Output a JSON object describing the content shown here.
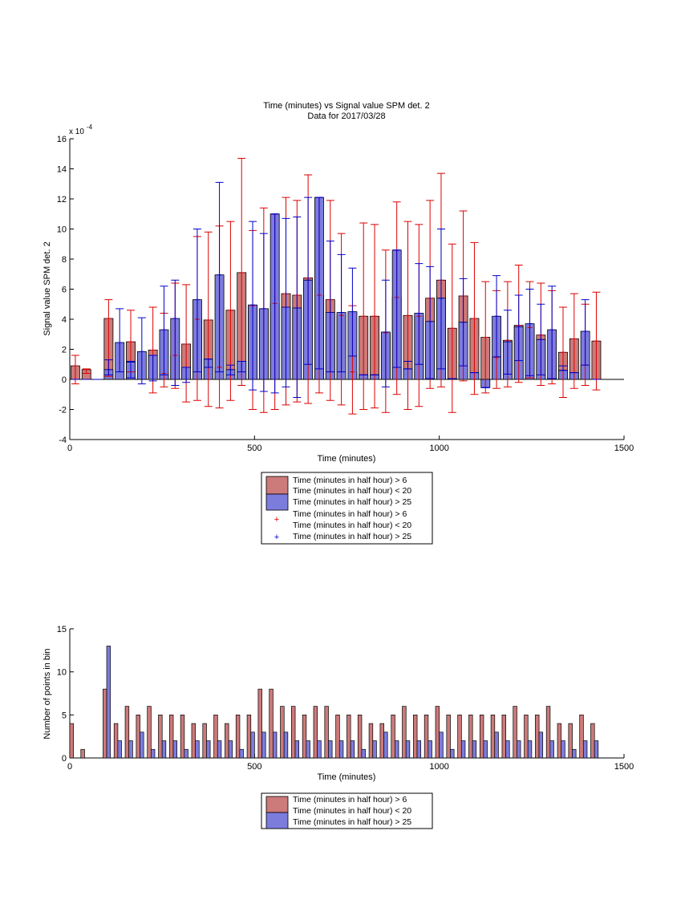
{
  "chart_data": [
    {
      "type": "bar",
      "title": "Time (minutes) vs Signal value SPM det. 2",
      "subtitle": "Data for 2017/03/28",
      "xlabel": "Time (minutes)",
      "ylabel": "Signal value SPM det. 2",
      "y_multiplier_label": "x 10",
      "y_multiplier_exponent": "-4",
      "xlim": [
        0,
        1500
      ],
      "ylim": [
        -4,
        16
      ],
      "xticks": [
        "0",
        "500",
        "1000",
        "1500"
      ],
      "yticks": [
        "-4",
        "-2",
        "0",
        "2",
        "4",
        "6",
        "8",
        "10",
        "12",
        "14",
        "16"
      ],
      "grid": false,
      "legend_position": "below",
      "legend": [
        "Time (minutes in half hour) > 6",
        "Time (minutes in half hour) < 20",
        "Time (minutes in half hour) > 25",
        "Time (minutes in half hour) > 6",
        "Time (minutes in half hour) < 20",
        "Time (minutes in half hour) > 25"
      ],
      "colors": {
        "red_bar": "#cc7a7a",
        "blue_bar": "#7c7cdd",
        "red_err": "#dd0000",
        "blue_err": "#0000cc"
      },
      "series": [
        {
          "name": "Time (minutes in half hour) > 6 / < 20",
          "x": [
            15,
            45,
            105,
            165,
            225,
            255,
            285,
            315,
            345,
            375,
            405,
            435,
            465,
            495,
            525,
            555,
            585,
            615,
            645,
            675,
            705,
            735,
            765,
            795,
            825,
            855,
            885,
            915,
            945,
            975,
            1005,
            1035,
            1065,
            1095,
            1125,
            1155,
            1185,
            1215,
            1245,
            1275,
            1305,
            1335,
            1365,
            1395,
            1425
          ],
          "values": [
            0.9,
            0.65,
            4.05,
            2.5,
            1.95,
            0.4,
            1.6,
            2.35,
            4.0,
            3.95,
            0.8,
            4.6,
            7.1,
            4.9,
            4.7,
            5.05,
            5.7,
            5.6,
            6.75,
            5.6,
            5.3,
            4.25,
            0.5,
            4.2,
            4.2,
            3.1,
            5.45,
            4.25,
            4.2,
            5.4,
            6.6,
            3.4,
            5.55,
            4.05,
            2.8,
            1.45,
            2.6,
            3.6,
            3.45,
            2.95,
            0.05,
            1.8,
            2.7,
            0.95,
            2.55
          ],
          "err_low": [
            -0.3,
            0.4,
            0.2,
            0.5,
            -0.9,
            -0.5,
            -0.6,
            -1.5,
            -1.4,
            -1.8,
            -1.9,
            -1.4,
            -0.4,
            -2.0,
            -2.2,
            -2.0,
            -1.7,
            -1.5,
            -1.6,
            -0.9,
            -1.4,
            -1.7,
            -2.3,
            -2.0,
            -1.9,
            -2.2,
            -1.0,
            -2.0,
            -1.8,
            -0.6,
            -0.5,
            -2.2,
            -0.1,
            -1.0,
            -0.9,
            -0.6,
            -0.5,
            -0.2,
            0.1,
            -0.4,
            -0.3,
            -1.2,
            -0.6,
            -0.4,
            -0.7
          ],
          "err_high": [
            1.6,
            0.7,
            5.3,
            4.6,
            4.8,
            4.4,
            6.4,
            6.3,
            9.5,
            9.8,
            10.2,
            10.5,
            14.7,
            9.9,
            11.4,
            11.0,
            12.1,
            11.9,
            13.6,
            12.1,
            11.9,
            9.7,
            4.9,
            10.4,
            10.3,
            8.6,
            11.8,
            10.5,
            10.3,
            11.9,
            13.7,
            9.0,
            11.2,
            9.1,
            6.5,
            5.9,
            6.5,
            7.6,
            6.5,
            6.4,
            5.9,
            4.8,
            5.7,
            5.0,
            5.8
          ]
        },
        {
          "name": "Time (minutes in half hour) > 25",
          "x": [
            15,
            45,
            75,
            105,
            135,
            165,
            195,
            225,
            255,
            285,
            315,
            345,
            375,
            405,
            435,
            465,
            495,
            525,
            555,
            585,
            615,
            645,
            675,
            705,
            735,
            765,
            795,
            825,
            855,
            885,
            915,
            945,
            975,
            1005,
            1035,
            1065,
            1095,
            1125,
            1155,
            1185,
            1215,
            1245,
            1275,
            1305,
            1335,
            1365,
            1395,
            1425
          ],
          "values": [
            0.0,
            0.0,
            0.0,
            0.65,
            2.45,
            1.15,
            1.85,
            1.6,
            3.3,
            4.05,
            0.8,
            5.3,
            1.35,
            6.95,
            0.65,
            1.2,
            4.95,
            4.7,
            11.0,
            4.8,
            4.75,
            6.6,
            12.1,
            4.45,
            4.45,
            4.5,
            0.3,
            0.3,
            3.15,
            8.6,
            0.7,
            4.4,
            3.85,
            5.4,
            0.05,
            3.8,
            0.45,
            -0.55,
            4.2,
            2.5,
            3.5,
            3.7,
            2.65,
            3.3,
            0.6,
            0.45,
            3.2,
            0.0
          ],
          "err_low": [
            0.0,
            0.0,
            0.0,
            0.3,
            0.5,
            0.1,
            -0.3,
            -0.1,
            0.3,
            -0.4,
            -0.2,
            0.5,
            0.8,
            0.5,
            0.3,
            0.5,
            -0.7,
            -0.8,
            -0.9,
            -0.5,
            -1.2,
            1.0,
            0.7,
            0.5,
            0.5,
            1.55,
            0.3,
            0.3,
            -0.5,
            0.8,
            0.7,
            1.0,
            0.05,
            0.7,
            0.05,
            0.9,
            0.45,
            -0.55,
            1.5,
            0.35,
            1.25,
            0.25,
            0.3,
            0.05,
            0.6,
            0.45,
            0.95,
            0.0
          ],
          "err_high": [
            0.0,
            0.0,
            0.0,
            1.3,
            4.7,
            1.2,
            4.1,
            1.6,
            6.2,
            6.6,
            0.8,
            10.0,
            1.35,
            13.1,
            0.95,
            1.2,
            10.5,
            9.7,
            11.0,
            10.7,
            10.8,
            12.1,
            12.1,
            9.2,
            8.3,
            7.4,
            0.3,
            0.3,
            6.6,
            8.6,
            1.2,
            7.7,
            7.5,
            10.0,
            0.05,
            6.7,
            0.45,
            -0.55,
            6.9,
            4.6,
            5.6,
            6.0,
            5.0,
            6.2,
            0.9,
            0.45,
            5.3,
            0.0
          ]
        }
      ]
    },
    {
      "type": "bar",
      "xlabel": "Time (minutes)",
      "ylabel": "Number of points in bin",
      "xlim": [
        0,
        1500
      ],
      "ylim": [
        0,
        15
      ],
      "xticks": [
        "0",
        "500",
        "1000",
        "1500"
      ],
      "yticks": [
        "0",
        "5",
        "10",
        "15"
      ],
      "grid": false,
      "legend_position": "below",
      "legend": [
        "Time (minutes in half hour) > 6",
        "Time (minutes in half hour) < 20",
        "Time (minutes in half hour) > 25"
      ],
      "series": [
        {
          "name": "Time (minutes in half hour) > 6 / < 20",
          "x": [
            5,
            35,
            95,
            125,
            155,
            185,
            215,
            245,
            275,
            305,
            335,
            365,
            395,
            425,
            455,
            485,
            515,
            545,
            575,
            605,
            635,
            665,
            695,
            725,
            755,
            785,
            815,
            845,
            875,
            905,
            935,
            965,
            995,
            1025,
            1055,
            1085,
            1115,
            1145,
            1175,
            1205,
            1235,
            1265,
            1295,
            1325,
            1355,
            1385,
            1415
          ],
          "values": [
            4,
            1,
            8,
            4,
            6,
            5,
            6,
            5,
            5,
            5,
            4,
            4,
            5,
            4,
            5,
            5,
            8,
            8,
            6,
            6,
            5,
            6,
            6,
            5,
            5,
            5,
            4,
            4,
            5,
            6,
            5,
            5,
            6,
            5,
            5,
            5,
            5,
            5,
            5,
            6,
            5,
            5,
            6,
            4,
            4,
            5,
            4
          ]
        },
        {
          "name": "Time (minutes in half hour) > 25",
          "x": [
            105,
            135,
            165,
            195,
            225,
            255,
            285,
            315,
            345,
            375,
            405,
            435,
            465,
            495,
            525,
            555,
            585,
            615,
            645,
            675,
            705,
            735,
            765,
            795,
            825,
            855,
            885,
            915,
            945,
            975,
            1005,
            1035,
            1065,
            1095,
            1125,
            1155,
            1185,
            1215,
            1245,
            1275,
            1305,
            1335,
            1365,
            1395,
            1425
          ],
          "values": [
            13,
            2,
            2,
            3,
            1,
            2,
            2,
            1,
            2,
            2,
            2,
            2,
            1,
            3,
            3,
            3,
            3,
            2,
            2,
            2,
            2,
            2,
            2,
            1,
            2,
            3,
            2,
            2,
            2,
            2,
            3,
            1,
            2,
            2,
            2,
            3,
            2,
            2,
            2,
            3,
            2,
            2,
            1,
            2,
            2
          ]
        }
      ]
    }
  ]
}
